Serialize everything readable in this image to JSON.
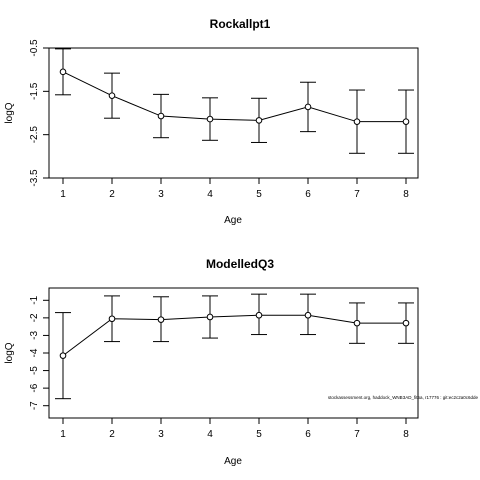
{
  "chart_data": [
    {
      "type": "line",
      "title": "Rockallpt1",
      "xlabel": "Age",
      "ylabel": "logQ",
      "x": [
        1,
        2,
        3,
        4,
        5,
        6,
        7,
        8
      ],
      "x_ticks": [
        "1",
        "2",
        "3",
        "4",
        "5",
        "6",
        "7",
        "8"
      ],
      "y_ticks": [
        "-0.5",
        "-1.5",
        "-2.5",
        "-3.5"
      ],
      "y_tick_values": [
        -0.5,
        -1.5,
        -2.5,
        -3.5
      ],
      "ylim": [
        -3.5,
        -0.5
      ],
      "series": [
        {
          "values": [
            -1.05,
            -1.6,
            -2.07,
            -2.14,
            -2.17,
            -1.86,
            -2.2,
            -2.2
          ],
          "lower": [
            -1.58,
            -2.12,
            -2.57,
            -2.63,
            -2.68,
            -2.43,
            -2.93,
            -2.93
          ],
          "upper": [
            -0.52,
            -1.08,
            -1.57,
            -1.65,
            -1.66,
            -1.29,
            -1.47,
            -1.47
          ]
        }
      ]
    },
    {
      "type": "line",
      "title": "ModelledQ3",
      "xlabel": "Age",
      "ylabel": "logQ",
      "x": [
        1,
        2,
        3,
        4,
        5,
        6,
        7,
        8
      ],
      "x_ticks": [
        "1",
        "2",
        "3",
        "4",
        "5",
        "6",
        "7",
        "8"
      ],
      "y_ticks": [
        "-1",
        "-2",
        "-3",
        "-4",
        "-5",
        "-6",
        "-7"
      ],
      "y_tick_values": [
        -1,
        -2,
        -3,
        -4,
        -5,
        -6,
        -7
      ],
      "ylim": [
        -7.7,
        -0.3
      ],
      "series": [
        {
          "values": [
            -4.15,
            -2.05,
            -2.1,
            -1.95,
            -1.85,
            -1.85,
            -2.3,
            -2.3
          ],
          "lower": [
            -6.6,
            -3.35,
            -3.35,
            -3.15,
            -2.95,
            -2.95,
            -3.45,
            -3.45
          ],
          "upper": [
            -1.7,
            -0.75,
            -0.8,
            -0.75,
            -0.65,
            -0.65,
            -1.15,
            -1.15
          ]
        }
      ],
      "annotation": "stockassessment.org, haddock_WNB3AD_fit5a, r17776 : git:ec2c2a0c6dde"
    }
  ]
}
